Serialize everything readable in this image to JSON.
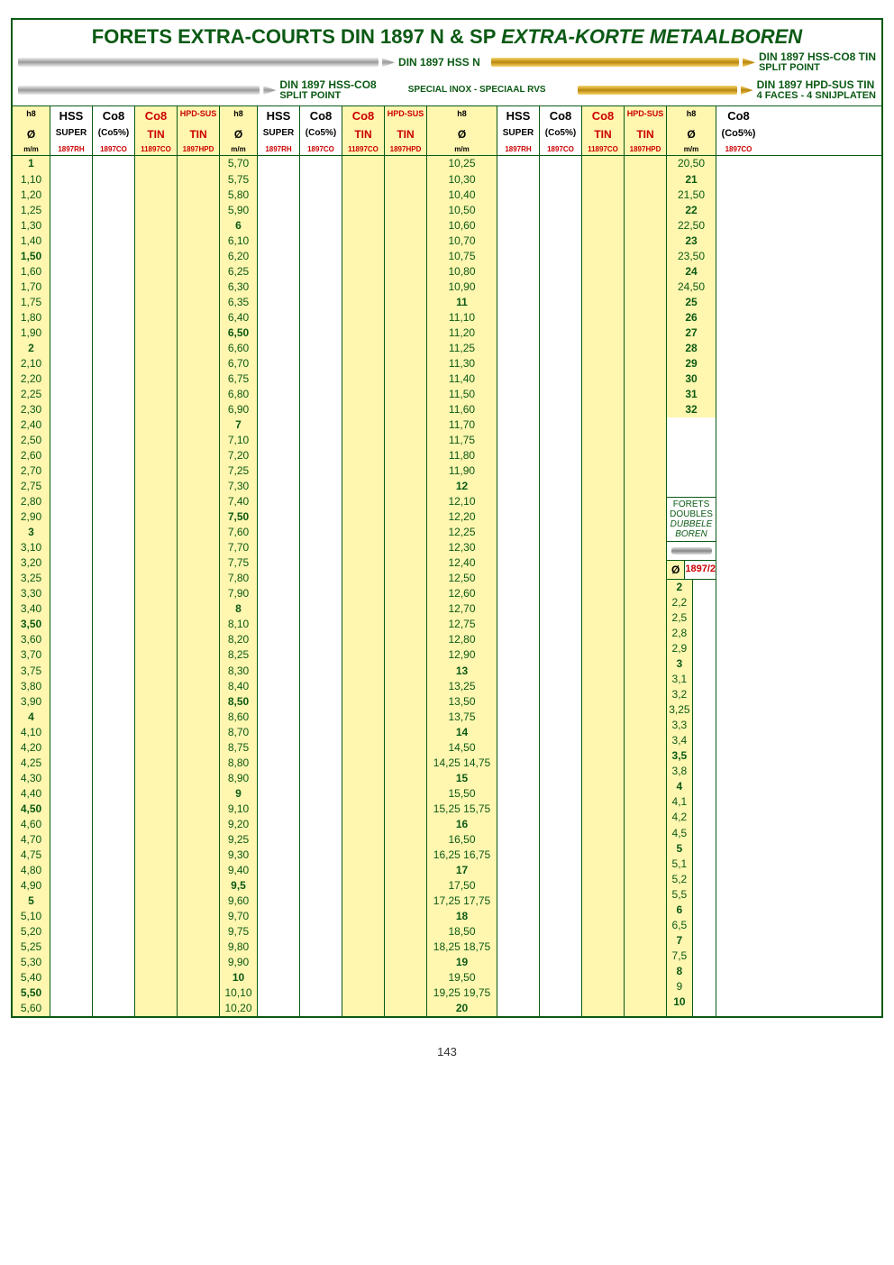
{
  "page_number": "143",
  "title_main": "FORETS EXTRA-COURTS DIN 1897 N & SP  ",
  "title_it": "EXTRA-KORTE METAALBOREN",
  "drill_labels": {
    "r1a": "DIN 1897 HSS N",
    "r1b": "DIN 1897 HSS-CO8 TIN",
    "r1b_sub": "SPLIT POINT",
    "r2a": "DIN 1897 HSS-CO8",
    "r2a_sub": "SPLIT POINT",
    "r2b": "DIN 1897 HPD-SUS TIN",
    "r2b_sub": "4 FACES - 4 SNIJPLATEN",
    "r2mid": "SPECIAL INOX - SPECIAAL RVS"
  },
  "header": {
    "h8": "h8",
    "hss": "HSS",
    "co8": "Co8",
    "co8b": "Co8",
    "hpd": "HPD-SUS",
    "dia": "Ø",
    "super": "SUPER",
    "co5p": "(Co5%)",
    "tin": "TIN",
    "tin2": "TIN",
    "mm": "m/m",
    "c1": "1897RH",
    "c2": "1897CO",
    "c3": "11897CO",
    "c4": "1897HPD",
    "last_co5": "(Co5%)",
    "last_code": "1897CO"
  },
  "forets_doubles": {
    "t1": "FORETS DOUBLES",
    "t2": "DUBBELE BOREN",
    "dia": "Ø",
    "code": "1897/2"
  },
  "col1": [
    "1",
    "1,10",
    "1,20",
    "1,25",
    "1,30",
    "1,40",
    "1,50",
    "1,60",
    "1,70",
    "1,75",
    "1,80",
    "1,90",
    "2",
    "2,10",
    "2,20",
    "2,25",
    "2,30",
    "2,40",
    "2,50",
    "2,60",
    "2,70",
    "2,75",
    "2,80",
    "2,90",
    "3",
    "3,10",
    "3,20",
    "3,25",
    "3,30",
    "3,40",
    "3,50",
    "3,60",
    "3,70",
    "3,75",
    "3,80",
    "3,90",
    "4",
    "4,10",
    "4,20",
    "4,25",
    "4,30",
    "4,40",
    "4,50",
    "4,60",
    "4,70",
    "4,75",
    "4,80",
    "4,90",
    "5",
    "5,10",
    "5,20",
    "5,25",
    "5,30",
    "5,40",
    "5,50",
    "5,60"
  ],
  "col1_bold": [
    0,
    6,
    12,
    24,
    30,
    36,
    42,
    48,
    54
  ],
  "col2": [
    "5,70",
    "5,75",
    "5,80",
    "5,90",
    "6",
    "6,10",
    "6,20",
    "6,25",
    "6,30",
    "6,35",
    "6,40",
    "6,50",
    "6,60",
    "6,70",
    "6,75",
    "6,80",
    "6,90",
    "7",
    "7,10",
    "7,20",
    "7,25",
    "7,30",
    "7,40",
    "7,50",
    "7,60",
    "7,70",
    "7,75",
    "7,80",
    "7,90",
    "8",
    "8,10",
    "8,20",
    "8,25",
    "8,30",
    "8,40",
    "8,50",
    "8,60",
    "8,70",
    "8,75",
    "8,80",
    "8,90",
    "9",
    "9,10",
    "9,20",
    "9,25",
    "9,30",
    "9,40",
    "9,5",
    "9,60",
    "9,70",
    "9,75",
    "9,80",
    "9,90",
    "10",
    "10,10",
    "10,20"
  ],
  "col2_bold": [
    4,
    11,
    17,
    23,
    29,
    35,
    41,
    47,
    53
  ],
  "col3": [
    "10,25",
    "10,30",
    "10,40",
    "10,50",
    "10,60",
    "10,70",
    "10,75",
    "10,80",
    "10,90",
    "11",
    "11,10",
    "11,20",
    "11,25",
    "11,30",
    "11,40",
    "11,50",
    "11,60",
    "11,70",
    "11,75",
    "11,80",
    "11,90",
    "12",
    "12,10",
    "12,20",
    "12,25",
    "12,30",
    "12,40",
    "12,50",
    "12,60",
    "12,70",
    "12,75",
    "12,80",
    "12,90",
    "13",
    "13,25",
    "13,50",
    "13,75",
    "14",
    "14,50",
    "14,25 14,75",
    "15",
    "15,50",
    "15,25 15,75",
    "16",
    "16,50",
    "16,25 16,75",
    "17",
    "17,50",
    "17,25 17,75",
    "18",
    "18,50",
    "18,25 18,75",
    "19",
    "19,50",
    "19,25 19,75",
    "20"
  ],
  "col3_bold": [
    9,
    21,
    33,
    37,
    40,
    43,
    46,
    49,
    52,
    55
  ],
  "col4": [
    "20,50",
    "21",
    "21,50",
    "22",
    "22,50",
    "23",
    "23,50",
    "24",
    "24,50",
    "25",
    "26",
    "27",
    "28",
    "29",
    "30",
    "31",
    "32"
  ],
  "col4_bold": [
    1,
    3,
    5,
    7,
    9,
    10,
    11,
    12,
    13,
    14,
    15,
    16
  ],
  "col5": [
    "2",
    "2,2",
    "2,5",
    "2,8",
    "2,9",
    "3",
    "3,1",
    "3,2",
    "3,25",
    "3,3",
    "3,4",
    "3,5",
    "3,8",
    "4",
    "4,1",
    "4,2",
    "4,5",
    "5",
    "5,1",
    "5,2",
    "5,5",
    "6",
    "6,5",
    "7",
    "7,5",
    "8",
    "9",
    "10"
  ],
  "col5_bold": [
    0,
    5,
    11,
    13,
    17,
    21,
    23,
    25,
    27
  ]
}
